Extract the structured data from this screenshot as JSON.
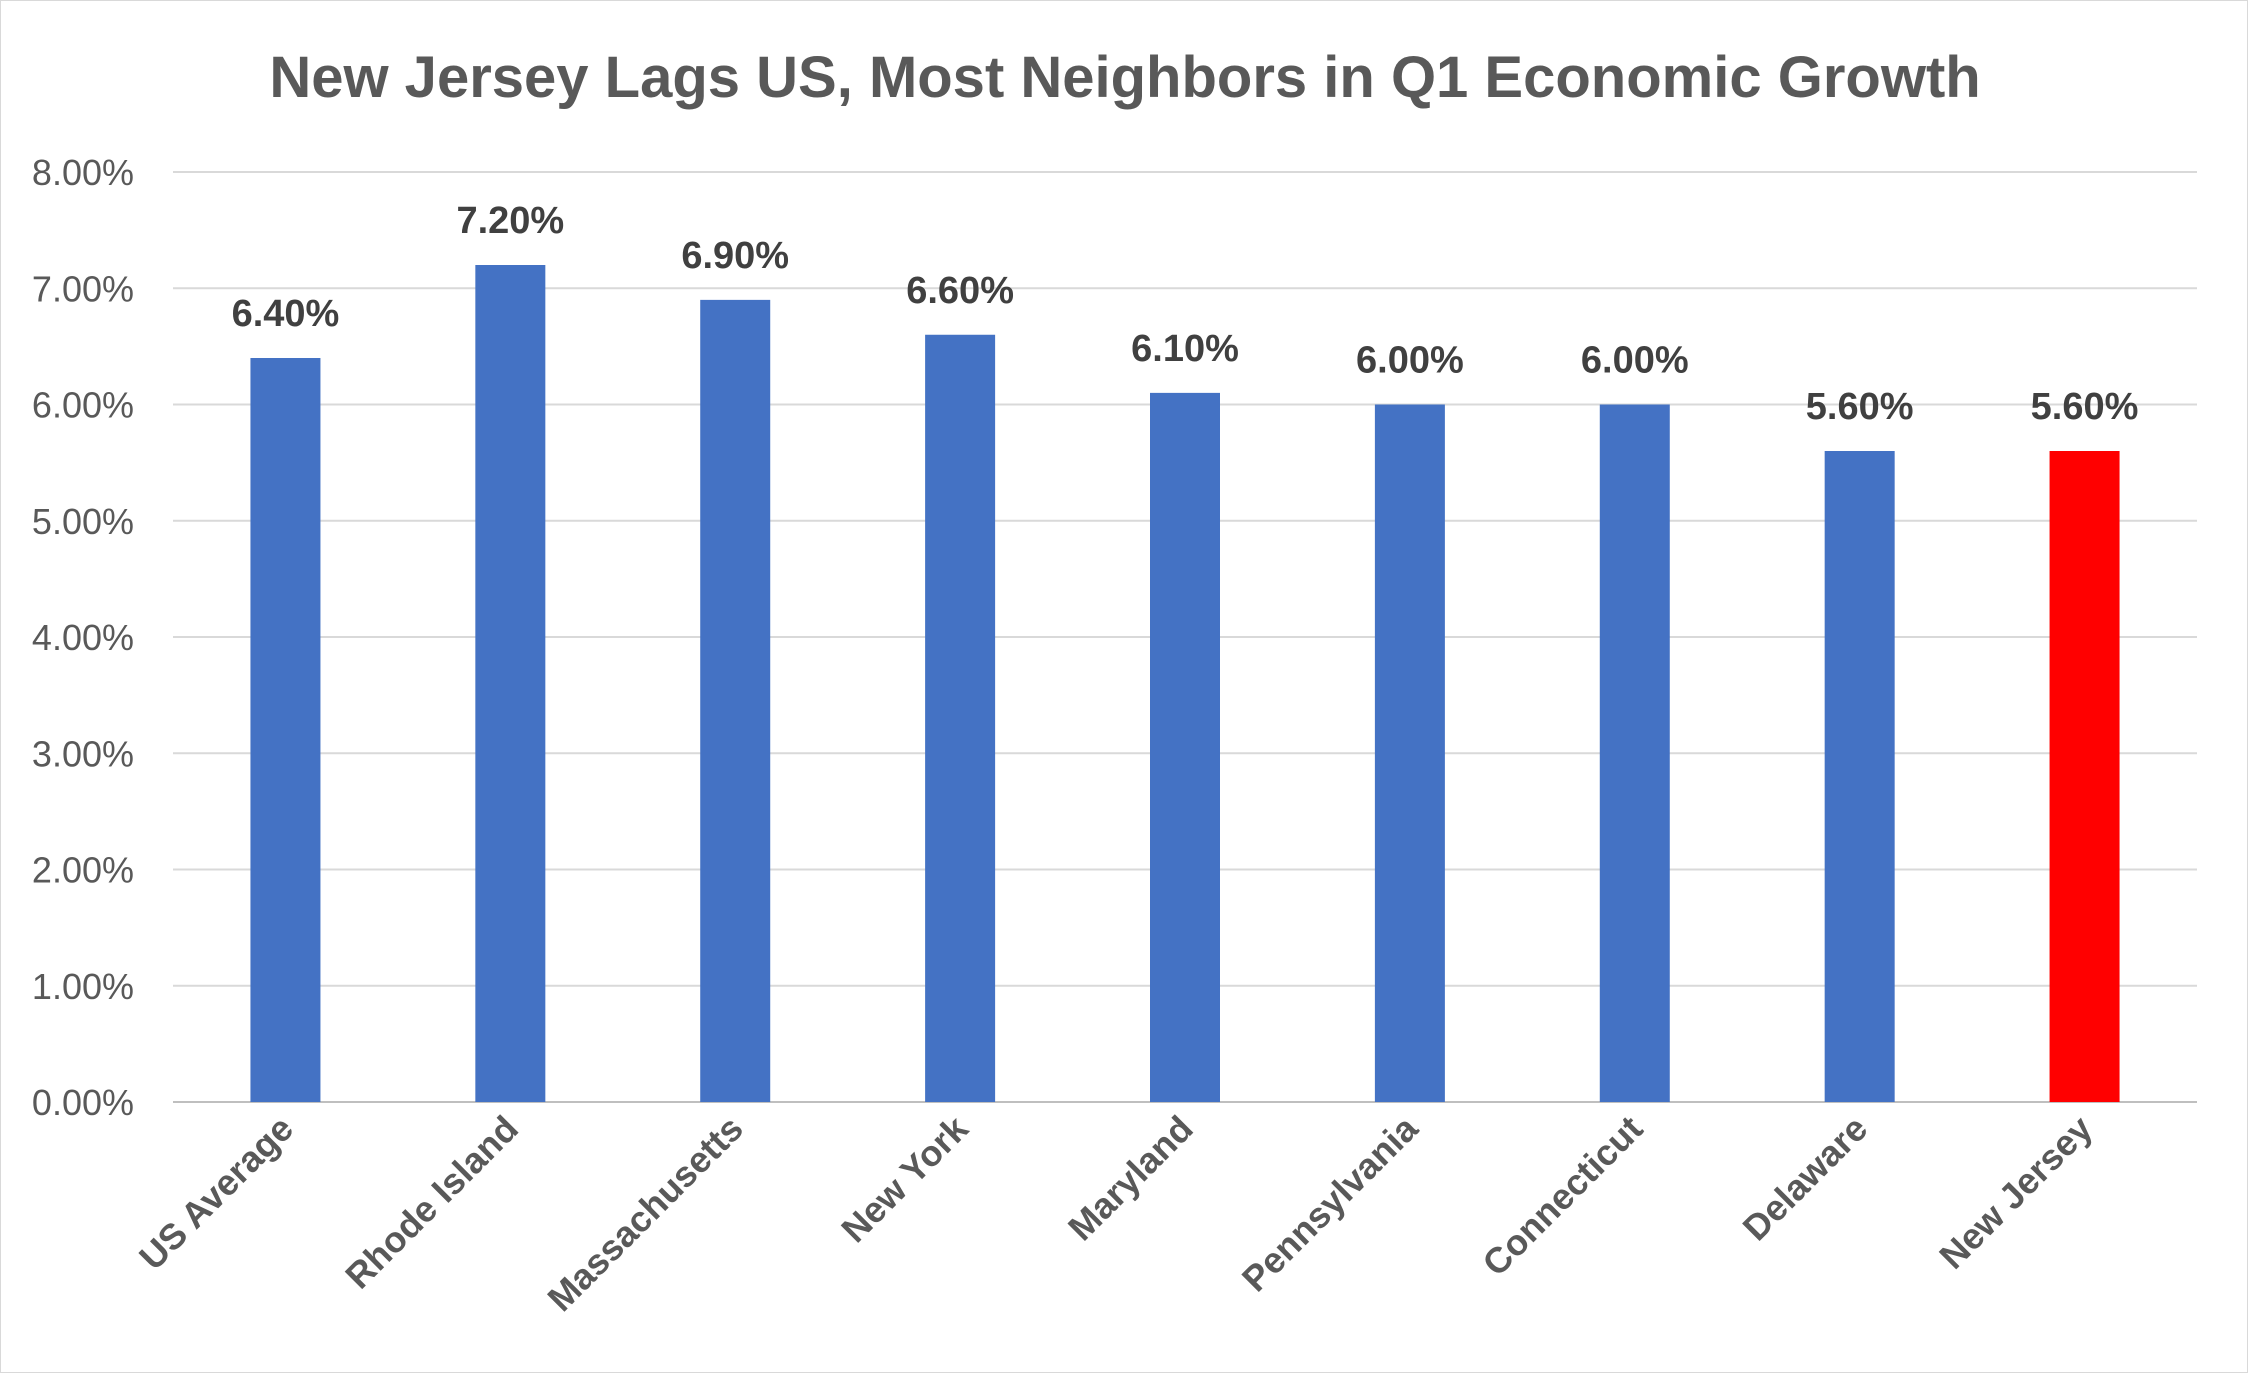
{
  "chart_data": {
    "type": "bar",
    "title": "New Jersey Lags US, Most Neighbors in Q1 Economic Growth",
    "xlabel": "",
    "ylabel": "",
    "categories": [
      "US Average",
      "Rhode Island",
      "Massachusetts",
      "New York",
      "Maryland",
      "Pennsylvania",
      "Connecticut",
      "Delaware",
      "New Jersey"
    ],
    "values": [
      6.4,
      7.2,
      6.9,
      6.6,
      6.1,
      6.0,
      6.0,
      5.6,
      5.6
    ],
    "data_labels": [
      "6.40%",
      "7.20%",
      "6.90%",
      "6.60%",
      "6.10%",
      "6.00%",
      "6.00%",
      "5.60%",
      "5.60%"
    ],
    "bar_colors": [
      "#4472C4",
      "#4472C4",
      "#4472C4",
      "#4472C4",
      "#4472C4",
      "#4472C4",
      "#4472C4",
      "#4472C4",
      "#FF0000"
    ],
    "ylim": [
      0,
      8
    ],
    "yticks": [
      0,
      1,
      2,
      3,
      4,
      5,
      6,
      7,
      8
    ],
    "ytick_labels": [
      "0.00%",
      "1.00%",
      "2.00%",
      "3.00%",
      "4.00%",
      "5.00%",
      "6.00%",
      "7.00%",
      "8.00%"
    ],
    "grid": true,
    "legend": "none",
    "colors": {
      "default_bar": "#4472C4",
      "highlight_bar": "#FF0000",
      "gridline": "#D9D9D9",
      "text": "#595959",
      "data_label": "#404040"
    }
  }
}
